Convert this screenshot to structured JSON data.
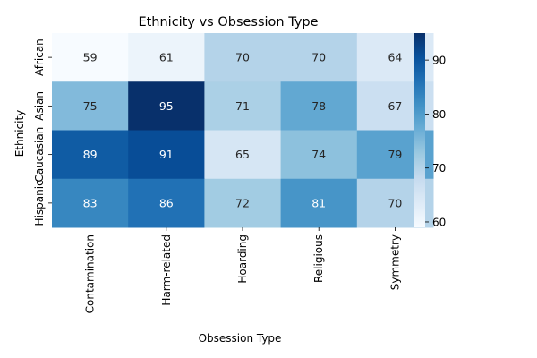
{
  "chart_data": {
    "type": "heatmap",
    "title": "Ethnicity vs Obsession Type",
    "xlabel": "Obsession Type",
    "ylabel": "Ethnicity",
    "x_categories": [
      "Contamination",
      "Harm-related",
      "Hoarding",
      "Religious",
      "Symmetry"
    ],
    "y_categories": [
      "African",
      "Asian",
      "Caucasian",
      "Hispanic"
    ],
    "values": [
      [
        59,
        61,
        70,
        70,
        64
      ],
      [
        75,
        95,
        71,
        78,
        67
      ],
      [
        89,
        91,
        65,
        74,
        79
      ],
      [
        83,
        86,
        72,
        81,
        70
      ]
    ],
    "colorbar": {
      "range": [
        59,
        95
      ],
      "ticks": [
        60,
        70,
        80,
        90
      ],
      "colormap": "Blues"
    },
    "colors": {
      "low": "#f7fbff",
      "high": "#08306b",
      "text_dark": "#262626",
      "text_light": "#ffffff"
    }
  }
}
